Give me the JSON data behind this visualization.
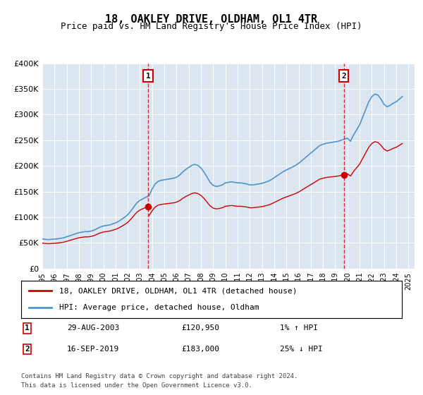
{
  "title": "18, OAKLEY DRIVE, OLDHAM, OL1 4TR",
  "subtitle": "Price paid vs. HM Land Registry's House Price Index (HPI)",
  "ylabel": "",
  "background_color": "#dce6f1",
  "plot_bg_color": "#dce6f1",
  "ylim": [
    0,
    400000
  ],
  "yticks": [
    0,
    50000,
    100000,
    150000,
    200000,
    250000,
    300000,
    350000,
    400000
  ],
  "ytick_labels": [
    "£0",
    "£50K",
    "£100K",
    "£150K",
    "£200K",
    "£250K",
    "£300K",
    "£350K",
    "£400K"
  ],
  "xlim_start": 1995.0,
  "xlim_end": 2025.5,
  "sale1_x": 2003.66,
  "sale1_y": 120950,
  "sale1_label": "1",
  "sale1_date": "29-AUG-2003",
  "sale1_price": "£120,950",
  "sale1_hpi": "1% ↑ HPI",
  "sale2_x": 2019.71,
  "sale2_y": 183000,
  "sale2_label": "2",
  "sale2_date": "16-SEP-2019",
  "sale2_price": "£183,000",
  "sale2_hpi": "25% ↓ HPI",
  "red_line_color": "#cc0000",
  "blue_line_color": "#4d94cc",
  "marker_color": "#cc0000",
  "dashed_line_color": "#cc0000",
  "legend_line1": "18, OAKLEY DRIVE, OLDHAM, OL1 4TR (detached house)",
  "legend_line2": "HPI: Average price, detached house, Oldham",
  "footer_line1": "Contains HM Land Registry data © Crown copyright and database right 2024.",
  "footer_line2": "This data is licensed under the Open Government Licence v3.0.",
  "hpi_data_x": [
    1995.0,
    1995.25,
    1995.5,
    1995.75,
    1996.0,
    1996.25,
    1996.5,
    1996.75,
    1997.0,
    1997.25,
    1997.5,
    1997.75,
    1998.0,
    1998.25,
    1998.5,
    1998.75,
    1999.0,
    1999.25,
    1999.5,
    1999.75,
    2000.0,
    2000.25,
    2000.5,
    2000.75,
    2001.0,
    2001.25,
    2001.5,
    2001.75,
    2002.0,
    2002.25,
    2002.5,
    2002.75,
    2003.0,
    2003.25,
    2003.5,
    2003.75,
    2004.0,
    2004.25,
    2004.5,
    2004.75,
    2005.0,
    2005.25,
    2005.5,
    2005.75,
    2006.0,
    2006.25,
    2006.5,
    2006.75,
    2007.0,
    2007.25,
    2007.5,
    2007.75,
    2008.0,
    2008.25,
    2008.5,
    2008.75,
    2009.0,
    2009.25,
    2009.5,
    2009.75,
    2010.0,
    2010.25,
    2010.5,
    2010.75,
    2011.0,
    2011.25,
    2011.5,
    2011.75,
    2012.0,
    2012.25,
    2012.5,
    2012.75,
    2013.0,
    2013.25,
    2013.5,
    2013.75,
    2014.0,
    2014.25,
    2014.5,
    2014.75,
    2015.0,
    2015.25,
    2015.5,
    2015.75,
    2016.0,
    2016.25,
    2016.5,
    2016.75,
    2017.0,
    2017.25,
    2017.5,
    2017.75,
    2018.0,
    2018.25,
    2018.5,
    2018.75,
    2019.0,
    2019.25,
    2019.5,
    2019.75,
    2020.0,
    2020.25,
    2020.5,
    2020.75,
    2021.0,
    2021.25,
    2021.5,
    2021.75,
    2022.0,
    2022.25,
    2022.5,
    2022.75,
    2023.0,
    2023.25,
    2023.5,
    2023.75,
    2024.0,
    2024.25,
    2024.5
  ],
  "hpi_data_y": [
    58000,
    57000,
    56500,
    57000,
    57500,
    58000,
    59000,
    60000,
    62000,
    64000,
    66000,
    68000,
    70000,
    71000,
    72000,
    72000,
    73000,
    75000,
    78000,
    81000,
    83000,
    84000,
    85000,
    87000,
    89000,
    92000,
    96000,
    100000,
    105000,
    112000,
    120000,
    128000,
    133000,
    136000,
    139000,
    142000,
    155000,
    165000,
    170000,
    172000,
    173000,
    174000,
    175000,
    176000,
    178000,
    182000,
    188000,
    193000,
    197000,
    201000,
    203000,
    201000,
    196000,
    188000,
    178000,
    168000,
    162000,
    160000,
    161000,
    163000,
    167000,
    168000,
    169000,
    168000,
    167000,
    167000,
    166000,
    165000,
    163000,
    163000,
    164000,
    165000,
    166000,
    168000,
    170000,
    173000,
    177000,
    181000,
    185000,
    189000,
    192000,
    195000,
    198000,
    201000,
    205000,
    210000,
    215000,
    220000,
    225000,
    230000,
    235000,
    240000,
    242000,
    244000,
    245000,
    246000,
    247000,
    248000,
    250000,
    252000,
    254000,
    248000,
    260000,
    270000,
    280000,
    295000,
    310000,
    325000,
    335000,
    340000,
    338000,
    330000,
    320000,
    315000,
    318000,
    322000,
    325000,
    330000,
    335000
  ],
  "xtick_years": [
    1995,
    1996,
    1997,
    1998,
    1999,
    2000,
    2001,
    2002,
    2003,
    2004,
    2005,
    2006,
    2007,
    2008,
    2009,
    2010,
    2011,
    2012,
    2013,
    2014,
    2015,
    2016,
    2017,
    2018,
    2019,
    2020,
    2021,
    2022,
    2023,
    2024,
    2025
  ]
}
